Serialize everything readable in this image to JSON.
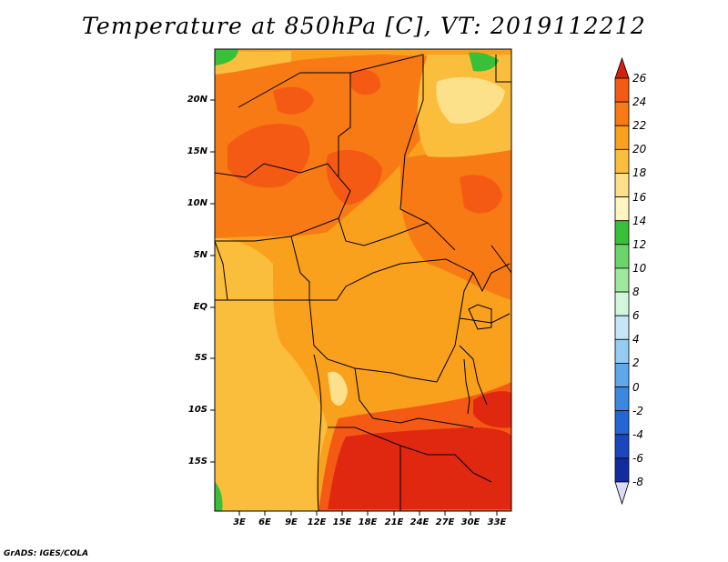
{
  "title": "Temperature at 850hPa [C], VT: 2019112212",
  "credit": "GrADS: IGES/COLA",
  "map": {
    "region": "Central Africa",
    "variable": "Temperature at 850hPa",
    "units": "C",
    "lat_labels": [
      "20N",
      "15N",
      "10N",
      "5N",
      "EQ",
      "5S",
      "10S",
      "15S"
    ],
    "lon_labels": [
      "3E",
      "6E",
      "9E",
      "12E",
      "15E",
      "18E",
      "21E",
      "24E",
      "27E",
      "30E",
      "33E"
    ]
  },
  "colorbar": {
    "labels": [
      "26",
      "24",
      "22",
      "20",
      "18",
      "16",
      "14",
      "12",
      "10",
      "8",
      "6",
      "4",
      "2",
      "0",
      "-2",
      "-4",
      "-6",
      "-8"
    ],
    "colors": [
      "#f03c20",
      "#f55a14",
      "#f77a14",
      "#f9a01c",
      "#fbbd3c",
      "#fde08a",
      "#fff5c0",
      "#38c038",
      "#6ad66a",
      "#a0e8a0",
      "#d2f6dc",
      "#c6e6f8",
      "#94ccf2",
      "#5ea8ec",
      "#3a88e0",
      "#2466d6",
      "#1a46bf",
      "#122c9e",
      "#0a1478"
    ],
    "top_arrow_color": "#d42010",
    "bottom_arrow_color": "#dcdcf8"
  }
}
